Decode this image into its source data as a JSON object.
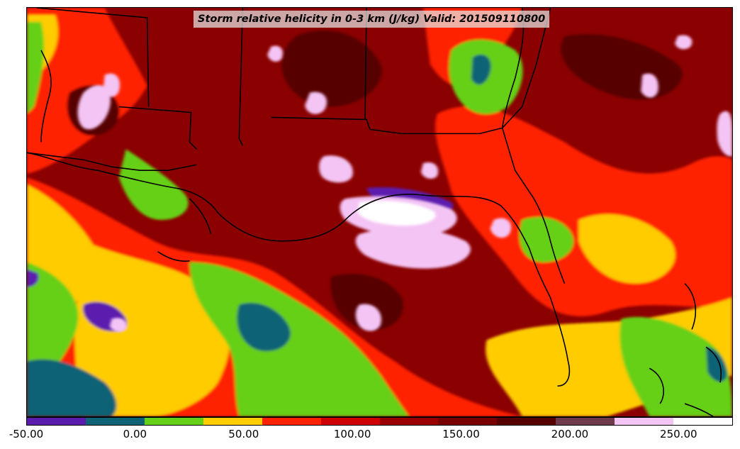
{
  "title": "Storm relative helicity in 0-3 km (J/kg) Valid: 201509110800",
  "colorbar": {
    "min": -50,
    "max": 275,
    "step": 25,
    "colors": [
      "#5b1cae",
      "#0e6474",
      "#66d019",
      "#ffcc00",
      "#ff2200",
      "#cf0000",
      "#9a0000",
      "#790000",
      "#560000",
      "#6e3a4c",
      "#f4c4f4",
      "#ffffff"
    ],
    "tick_labels": [
      "-50.00",
      "0.00",
      "50.00",
      "100.00",
      "150.00",
      "200.00",
      "250.00"
    ],
    "tick_values": [
      -50,
      0,
      50,
      100,
      150,
      200,
      250
    ]
  },
  "colors": {
    "background_field": "#8b0000",
    "boundaries": "#000000"
  }
}
